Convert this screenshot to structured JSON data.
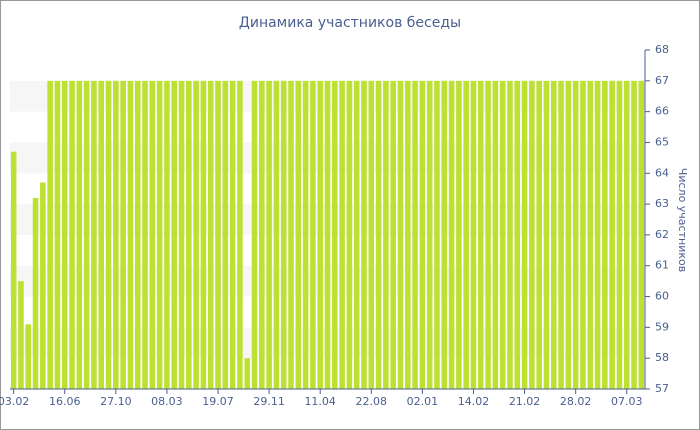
{
  "chart_data": {
    "type": "bar",
    "title": "Динамика участников беседы",
    "y_label": "Число участников",
    "categories": [
      "03.02",
      null,
      null,
      null,
      null,
      null,
      null,
      "16.06",
      null,
      null,
      null,
      null,
      null,
      null,
      "27.10",
      null,
      null,
      null,
      null,
      null,
      null,
      "08.03",
      null,
      null,
      null,
      null,
      null,
      null,
      "19.07",
      null,
      null,
      null,
      null,
      null,
      null,
      "29.11",
      null,
      null,
      null,
      null,
      null,
      null,
      "11.04",
      null,
      null,
      null,
      null,
      null,
      null,
      "22.08",
      null,
      null,
      null,
      null,
      null,
      null,
      "02.01",
      null,
      null,
      null,
      null,
      null,
      null,
      "14.02",
      null,
      null,
      null,
      null,
      null,
      null,
      "21.02",
      null,
      null,
      null,
      null,
      null,
      null,
      "28.02",
      null,
      null,
      null,
      null,
      null,
      null,
      "07.03",
      null,
      null
    ],
    "values": [
      64.7,
      60.5,
      59.1,
      63.2,
      63.7,
      67,
      67,
      67,
      67,
      67,
      67,
      67,
      67,
      67,
      67,
      67,
      67,
      67,
      67,
      67,
      67,
      67,
      67,
      67,
      67,
      67,
      67,
      67,
      67,
      67,
      67,
      67,
      58,
      67,
      67,
      67,
      67,
      67,
      67,
      67,
      67,
      67,
      67,
      67,
      67,
      67,
      67,
      67,
      67,
      67,
      67,
      67,
      67,
      67,
      67,
      67,
      67,
      67,
      67,
      67,
      67,
      67,
      67,
      67,
      67,
      67,
      67,
      67,
      67,
      67,
      67,
      67,
      67,
      67,
      67,
      67,
      67,
      67,
      67,
      67,
      67,
      67,
      67,
      67,
      67,
      67,
      67
    ],
    "color": "#bde132",
    "ylim": [
      57,
      68
    ],
    "yticks": [
      57,
      58,
      59,
      60,
      61,
      62,
      63,
      64,
      65,
      66,
      67,
      68
    ],
    "grid": true
  }
}
